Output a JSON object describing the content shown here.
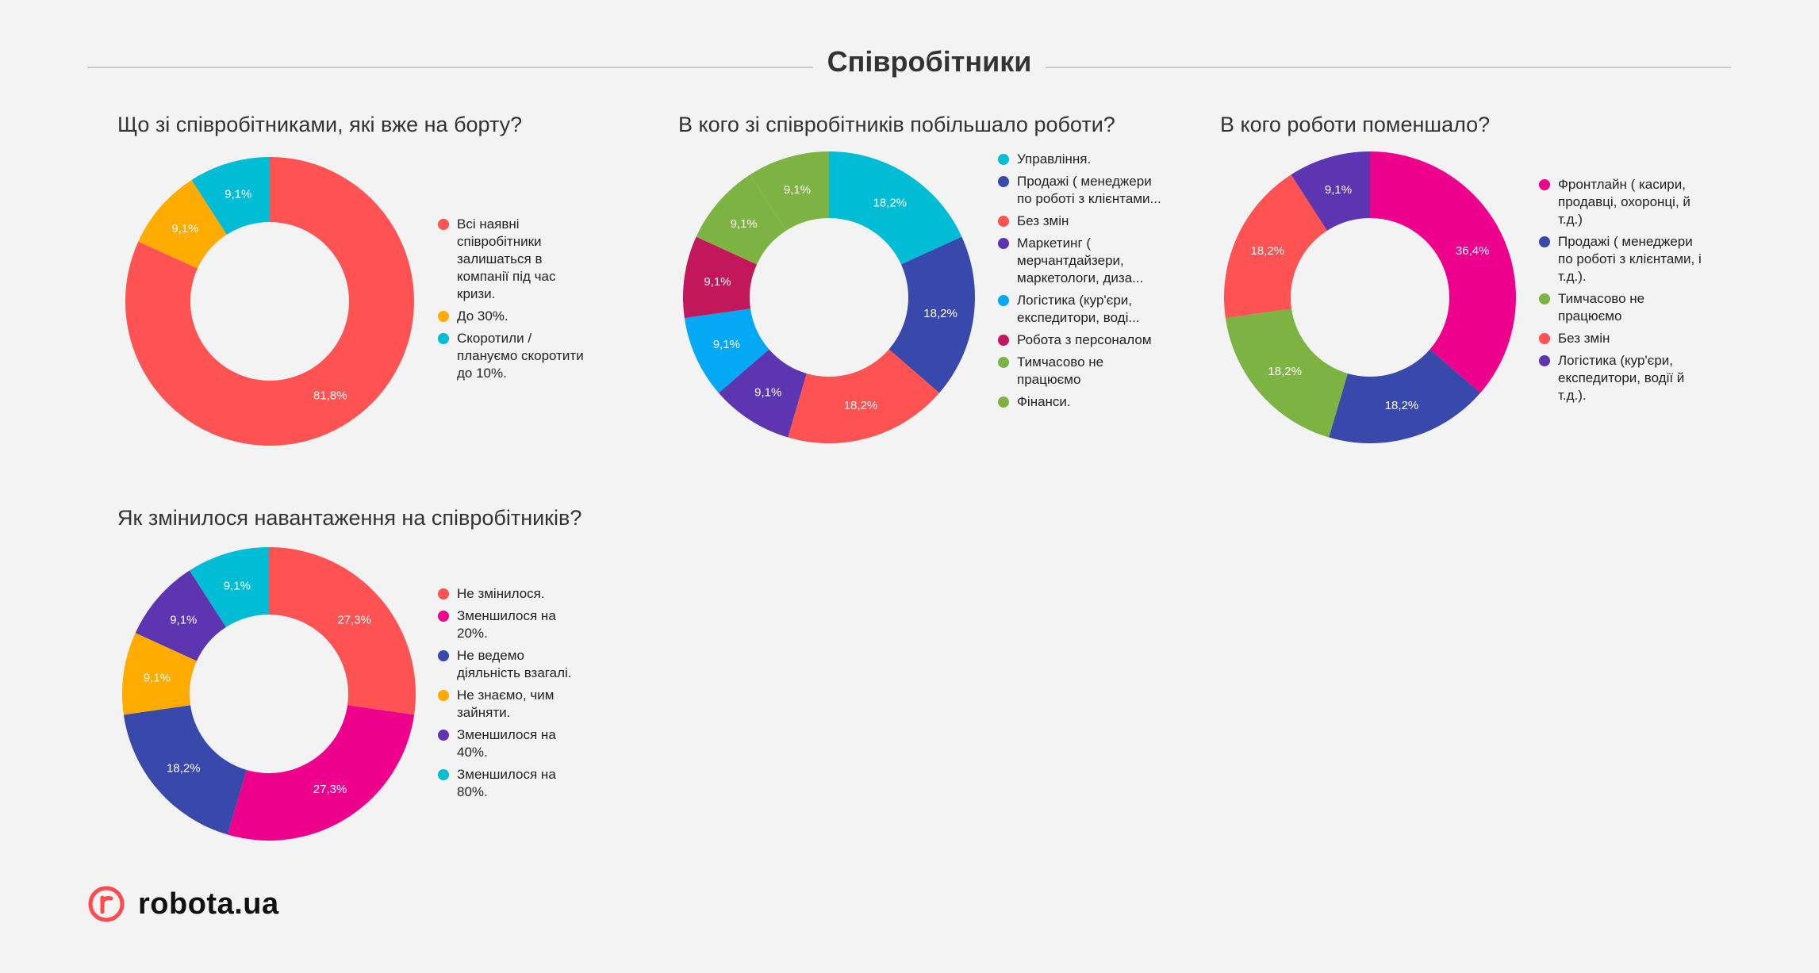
{
  "page": {
    "title": "Співробітники",
    "logo_text": "robota.ua"
  },
  "chart_data": [
    {
      "type": "pie",
      "title": "Що зі співробітниками, які вже на борту?",
      "legend_position": "right",
      "series": [
        {
          "name": "Всі наявні співробітники залишаться в компанії під час кризи.",
          "label": "81,8%",
          "value": 81.8,
          "color": "#ff5252"
        },
        {
          "name": "До 30%.",
          "label": "9,1%",
          "value": 9.1,
          "color": "#ffab00"
        },
        {
          "name": "Скоротили / плануємо скоротити до 10%.",
          "label": "9,1%",
          "value": 9.1,
          "color": "#00bcd4"
        }
      ]
    },
    {
      "type": "pie",
      "title": "В кого зі співробітників побільшало роботи?",
      "legend_position": "right",
      "series": [
        {
          "name": "Управління.",
          "label": "18,2%",
          "value": 18.2,
          "color": "#00bcd4"
        },
        {
          "name": "Продажі ( менеджери по роботі з клієнтами...",
          "label": "18,2%",
          "value": 18.2,
          "color": "#3949ab"
        },
        {
          "name": "Без змін",
          "label": "18,2%",
          "value": 18.2,
          "color": "#ff5252"
        },
        {
          "name": "Маркетинг ( мерчантдайзери, маркетологи, диза...",
          "label": "9,1%",
          "value": 9.1,
          "color": "#5e35b1"
        },
        {
          "name": "Логістика (кур'єри, експедитори, воді...",
          "label": "9,1%",
          "value": 9.1,
          "color": "#03a9f4"
        },
        {
          "name": "Робота з персоналом",
          "label": "9,1%",
          "value": 9.1,
          "color": "#c2185b"
        },
        {
          "name": "Тимчасово не працюємо",
          "label": "9,1%",
          "value": 9.1,
          "color": "#7cb342"
        },
        {
          "name": "Фінанси.",
          "label": "9,1%",
          "value": 9.1,
          "color": "#7cb342"
        }
      ]
    },
    {
      "type": "pie",
      "title": "В кого роботи поменшало?",
      "legend_position": "right",
      "series": [
        {
          "name": "Фронтлайн ( касири, продавці, охоронці, й т.д.)",
          "label": "36,4%",
          "value": 36.4,
          "color": "#ec008c"
        },
        {
          "name": "Продажі ( менеджери по роботі з клієнтами, і т.д.).",
          "label": "18,2%",
          "value": 18.2,
          "color": "#3949ab"
        },
        {
          "name": "Тимчасово не працюємо",
          "label": "18,2%",
          "value": 18.2,
          "color": "#7cb342"
        },
        {
          "name": "Без змін",
          "label": "18,2%",
          "value": 18.2,
          "color": "#ff5252"
        },
        {
          "name": "Логістика (кур'єри, експедитори, водії й т.д.).",
          "label": "9,1%",
          "value": 9.1,
          "color": "#5e35b1"
        }
      ]
    },
    {
      "type": "pie",
      "title": "Як змінилося навантаження на співробітників?",
      "legend_position": "right",
      "series": [
        {
          "name": "Не змінилося.",
          "label": "27,3%",
          "value": 27.3,
          "color": "#ff5252"
        },
        {
          "name": "Зменшилося на 20%.",
          "label": "27,3%",
          "value": 27.3,
          "color": "#ec008c"
        },
        {
          "name": "Не ведемо діяльність взагалі.",
          "label": "18,2%",
          "value": 18.2,
          "color": "#3949ab"
        },
        {
          "name": "Не знаємо, чим зайняти.",
          "label": "9,1%",
          "value": 9.1,
          "color": "#ffab00"
        },
        {
          "name": "Зменшилося на 40%.",
          "label": "9,1%",
          "value": 9.1,
          "color": "#5e35b1"
        },
        {
          "name": "Зменшилося на 80%.",
          "label": "9,1%",
          "value": 9.1,
          "color": "#00bcd4"
        }
      ]
    }
  ],
  "colors": {
    "background": "#f3f3f3",
    "brand_accent": "#ff4b4b"
  }
}
